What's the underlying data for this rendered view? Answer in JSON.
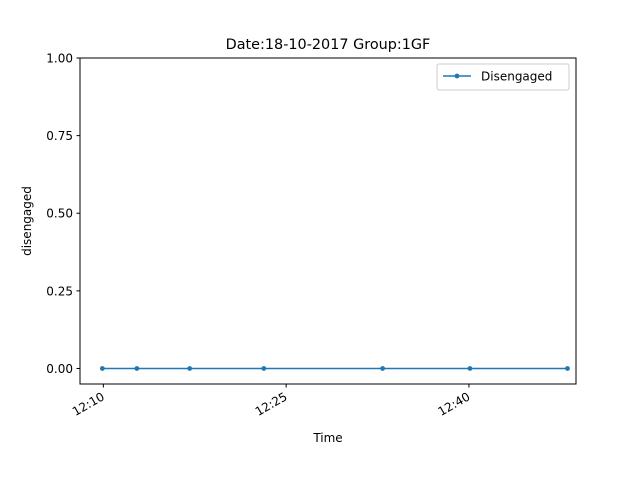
{
  "chart_data": {
    "type": "line",
    "title": "Date:18-10-2017  Group:1GF",
    "xlabel": "Time",
    "ylabel": "disengaged",
    "x_ticks": [
      "12:10",
      "12:25",
      "12:40"
    ],
    "x_tick_values": [
      "12:10",
      "12:25",
      "12:40"
    ],
    "y_ticks": [
      "0.00",
      "0.25",
      "0.50",
      "0.75",
      "1.00"
    ],
    "y_tick_values": [
      0,
      0.25,
      0.5,
      0.75,
      1.0
    ],
    "xlim": [
      "12:08:05",
      "12:48:47"
    ],
    "ylim": [
      -0.05,
      1.0
    ],
    "grid": false,
    "legend_position": "upper right",
    "series": [
      {
        "name": "Disengaged",
        "color": "#1f77b4",
        "marker": "dot",
        "x": [
          "12:09:55",
          "12:12:45",
          "12:17:05",
          "12:23:10",
          "12:32:55",
          "12:40:05",
          "12:48:05"
        ],
        "y": [
          0,
          0,
          0,
          0,
          0,
          0,
          0
        ]
      }
    ]
  }
}
